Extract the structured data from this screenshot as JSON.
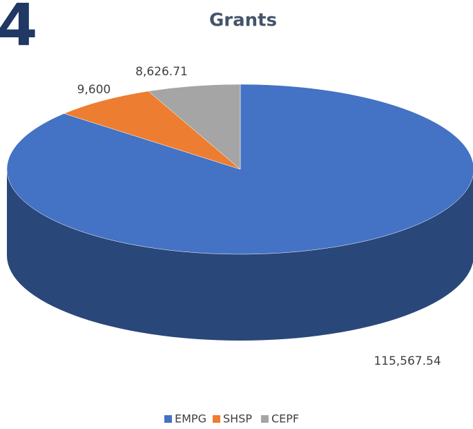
{
  "chart_data": {
    "type": "pie",
    "title": "Grants",
    "annotation": "4",
    "categories": [
      "EMPG",
      "SHSP",
      "CEPF"
    ],
    "values": [
      115567.54,
      9600,
      8626.71
    ],
    "value_labels": [
      "115,567.54",
      "9,600",
      "8,626.71"
    ],
    "colors": [
      "#4472c4",
      "#ed7d31",
      "#a5a5a5"
    ],
    "legend": "bottom"
  }
}
